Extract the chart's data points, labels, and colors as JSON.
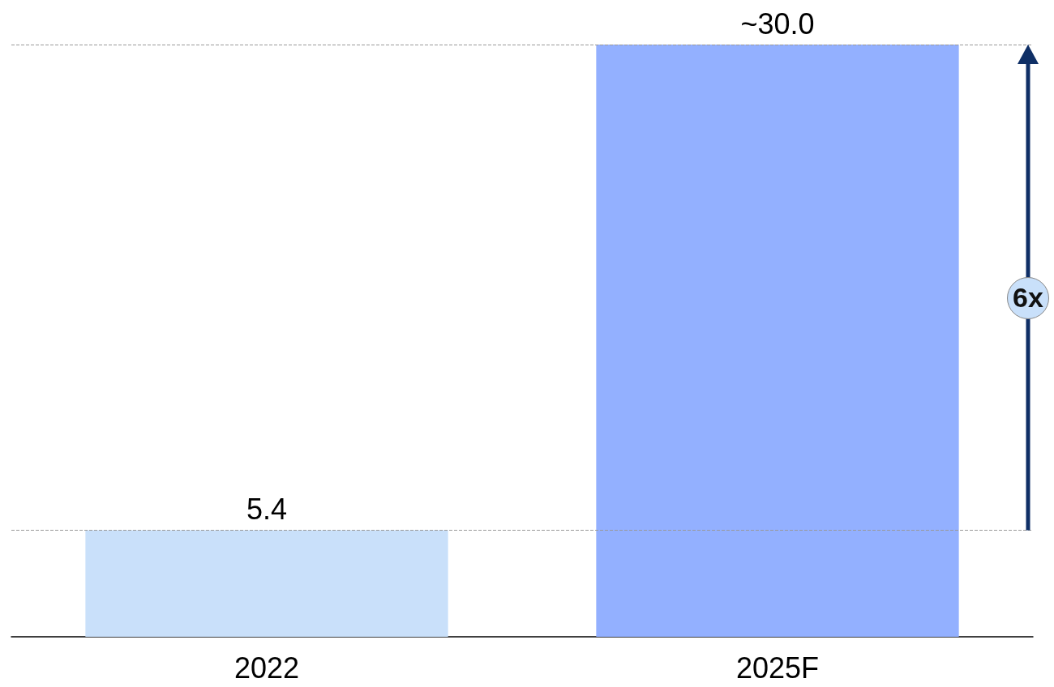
{
  "chart_data": {
    "type": "bar",
    "categories": [
      "2022",
      "2025F"
    ],
    "values": [
      5.4,
      30.0
    ],
    "colors": [
      "#c9e0fa",
      "#93b0ff"
    ],
    "value_labels": [
      "5.4",
      "~30.0"
    ],
    "ylim": [
      0,
      30
    ],
    "tick_labels": "x",
    "ref_lines": [
      {
        "axis": "y",
        "value": 5.4,
        "color": "#999999",
        "line_style": "dashed"
      },
      {
        "axis": "y",
        "value": 30.0,
        "color": "#999999",
        "line_style": "dashed"
      }
    ],
    "annotations": [
      "6x"
    ]
  }
}
